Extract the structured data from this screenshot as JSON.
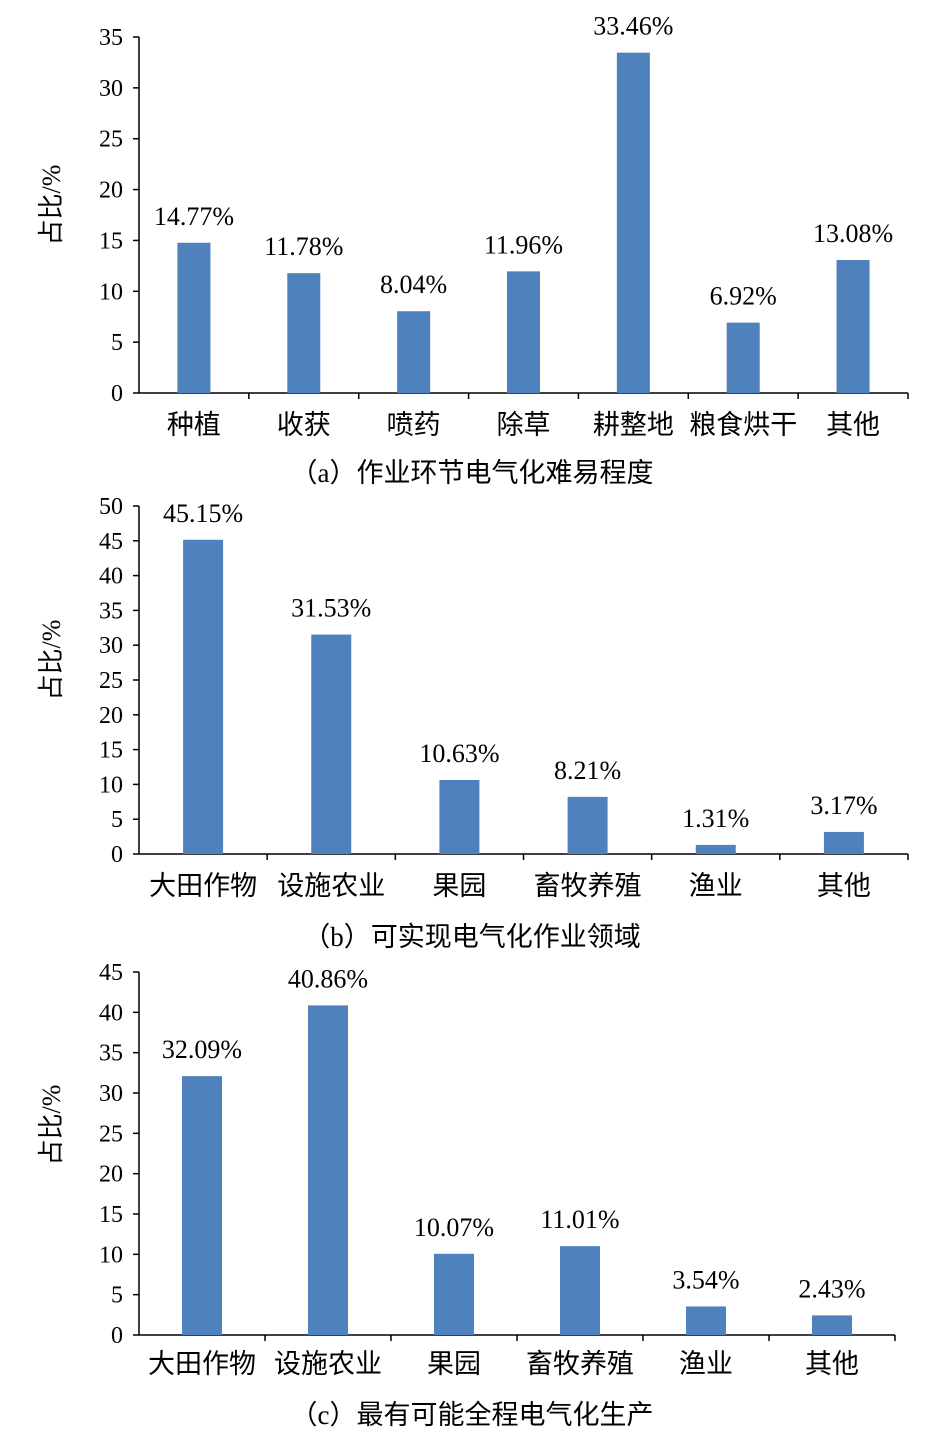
{
  "chart_data": [
    {
      "type": "bar",
      "caption": "（a）作业环节电气化难易程度",
      "ylabel": "占比/%",
      "ylim": [
        0,
        35
      ],
      "yticks": [
        0,
        5,
        10,
        15,
        20,
        25,
        30,
        35
      ],
      "categories": [
        "种植",
        "收获",
        "喷药",
        "除草",
        "耕整地",
        "粮食烘干",
        "其他"
      ],
      "values": [
        14.77,
        11.78,
        8.04,
        11.96,
        33.46,
        6.92,
        13.08
      ],
      "data_labels": [
        "14.77%",
        "11.78%",
        "8.04%",
        "11.96%",
        "33.46%",
        "6.92%",
        "13.08%"
      ],
      "bar_color": "#4F81BD",
      "grid": false
    },
    {
      "type": "bar",
      "caption": "（b）可实现电气化作业领域",
      "ylabel": "占比/%",
      "ylim": [
        0,
        50
      ],
      "yticks": [
        0,
        5,
        10,
        15,
        20,
        25,
        30,
        35,
        40,
        45,
        50
      ],
      "categories": [
        "大田作物",
        "设施农业",
        "果园",
        "畜牧养殖",
        "渔业",
        "其他"
      ],
      "values": [
        45.15,
        31.53,
        10.63,
        8.21,
        1.31,
        3.17
      ],
      "data_labels": [
        "45.15%",
        "31.53%",
        "10.63%",
        "8.21%",
        "1.31%",
        "3.17%"
      ],
      "bar_color": "#4F81BD",
      "grid": false
    },
    {
      "type": "bar",
      "caption": "（c）最有可能全程电气化生产",
      "ylabel": "占比/%",
      "ylim": [
        0,
        45
      ],
      "yticks": [
        0,
        5,
        10,
        15,
        20,
        25,
        30,
        35,
        40,
        45
      ],
      "categories": [
        "大田作物",
        "设施农业",
        "果园",
        "畜牧养殖",
        "渔业",
        "其他"
      ],
      "values": [
        32.09,
        40.86,
        10.07,
        11.01,
        3.54,
        2.43
      ],
      "data_labels": [
        "32.09%",
        "40.86%",
        "10.07%",
        "11.01%",
        "3.54%",
        "2.43%"
      ],
      "bar_color": "#4F81BD",
      "grid": false
    }
  ]
}
